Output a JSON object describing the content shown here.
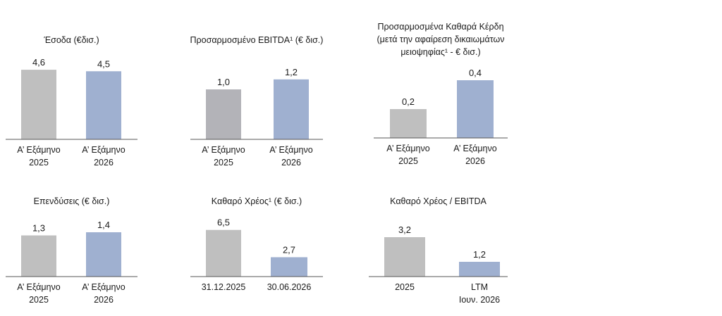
{
  "colors": {
    "base": "#bfbfbf",
    "base_dark": "#b3b3b8",
    "accent": "#9fb0d0",
    "axis": "#555555",
    "text": "#1a1a1a"
  },
  "chart_data": [
    {
      "type": "bar",
      "title_lines": [
        "Έσοδα (€δισ.)"
      ],
      "categories": [
        [
          "Α’ Εξάμηνο",
          "2025"
        ],
        [
          "Α’ Εξάμηνο",
          "2026"
        ]
      ],
      "values": [
        4.6,
        4.5
      ],
      "value_labels": [
        "4,6",
        "4,5"
      ]
    },
    {
      "type": "bar",
      "title_lines": [
        "Προσαρμοσμένο EBITDA¹ (€ δισ.)"
      ],
      "categories": [
        [
          "Α’ Εξάμηνο",
          "2025"
        ],
        [
          "Α’ Εξάμηνο",
          "2026"
        ]
      ],
      "values": [
        1.0,
        1.2
      ],
      "value_labels": [
        "1,0",
        "1,2"
      ]
    },
    {
      "type": "bar",
      "title_lines": [
        "Προσαρμοσμένα Καθαρά Κέρδη",
        "(μετά την αφαίρεση δικαιωμάτων",
        "μειοψηφίας¹ - € δισ.)"
      ],
      "categories": [
        [
          "Α’ Εξάμηνο",
          "2025"
        ],
        [
          "Α’ Εξάμηνο",
          "2026"
        ]
      ],
      "values": [
        0.2,
        0.4
      ],
      "value_labels": [
        "0,2",
        "0,4"
      ]
    },
    {
      "type": "bar",
      "title_lines": [
        "Επενδύσεις (€ δισ.)"
      ],
      "categories": [
        [
          "Α’ Εξάμηνο",
          "2025"
        ],
        [
          "Α’ Εξάμηνο",
          "2026"
        ]
      ],
      "values": [
        1.3,
        1.4
      ],
      "value_labels": [
        "1,3",
        "1,4"
      ]
    },
    {
      "type": "bar",
      "title_lines": [
        "Καθαρό Χρέος¹ (€ δισ.)"
      ],
      "categories": [
        [
          "31.12.2025"
        ],
        [
          "30.06.2026"
        ]
      ],
      "values": [
        6.5,
        2.7
      ],
      "value_labels": [
        "6,5",
        "2,7"
      ]
    },
    {
      "type": "bar",
      "title_lines": [
        "Καθαρό Χρέος / EBITDA"
      ],
      "categories": [
        [
          "2025"
        ],
        [
          "LTM",
          "Ιουν. 2026"
        ]
      ],
      "values": [
        3.2,
        1.2
      ],
      "value_labels": [
        "3,2",
        "1,2"
      ]
    }
  ]
}
